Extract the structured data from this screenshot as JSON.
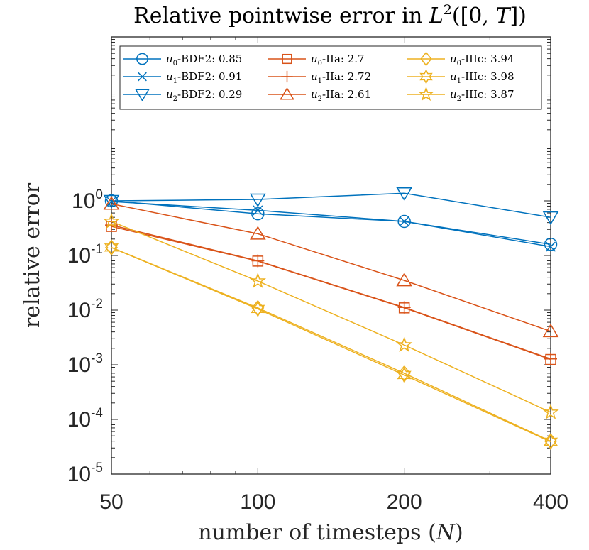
{
  "chart_data": {
    "type": "line",
    "title": "Relative pointwise error in L²([0, T])",
    "xlabel": "number of timesteps (N)",
    "ylabel": "relative error",
    "x_scale": "log",
    "y_scale": "log",
    "x": [
      50,
      100,
      200,
      400
    ],
    "xlim": [
      50,
      400
    ],
    "ylim": [
      1e-05,
      1000
    ],
    "x_ticks": [
      50,
      100,
      200,
      400
    ],
    "x_tick_labels": [
      "50",
      "100",
      "200",
      "400"
    ],
    "y_ticks": [
      1e-05,
      0.0001,
      0.001,
      0.01,
      0.1,
      1
    ],
    "y_tick_labels": [
      {
        "base": "10",
        "exp": "-5"
      },
      {
        "base": "10",
        "exp": "-4"
      },
      {
        "base": "10",
        "exp": "-3"
      },
      {
        "base": "10",
        "exp": "-2"
      },
      {
        "base": "10",
        "exp": "-1"
      },
      {
        "base": "10",
        "exp": "0"
      }
    ],
    "grid": false,
    "legend_position": "top",
    "series": [
      {
        "name": "u0-BDF2: 0.85",
        "label_sub": "0",
        "label_rest": "-BDF2:",
        "label_rate": "0.85",
        "marker": "circle",
        "color": "#0072BD",
        "line_width": 1.5,
        "values": [
          1.0,
          0.58,
          0.42,
          0.16
        ]
      },
      {
        "name": "u1-BDF2: 0.91",
        "label_sub": "1",
        "label_rest": "-BDF2:",
        "label_rate": "0.91",
        "marker": "x",
        "color": "#0072BD",
        "line_width": 1.5,
        "values": [
          0.97,
          0.67,
          0.42,
          0.145
        ]
      },
      {
        "name": "u2-BDF2: 0.29",
        "label_sub": "2",
        "label_rest": "-BDF2:",
        "label_rate": "0.29",
        "marker": "triangle-down",
        "color": "#0072BD",
        "line_width": 1.5,
        "values": [
          1.0,
          1.06,
          1.38,
          0.5
        ]
      },
      {
        "name": "u0-IIa: 2.7",
        "label_sub": "0",
        "label_rest": "-IIa:",
        "label_rate": "2.7",
        "marker": "square",
        "color": "#D95319",
        "line_width": 1.5,
        "values": [
          0.34,
          0.079,
          0.011,
          0.00125
        ]
      },
      {
        "name": "u1-IIa: 2.72",
        "label_sub": "1",
        "label_rest": "-IIa:",
        "label_rate": "2.72",
        "marker": "plus",
        "color": "#D95319",
        "line_width": 1.5,
        "values": [
          0.36,
          0.08,
          0.0112,
          0.00128
        ]
      },
      {
        "name": "u2-IIa: 2.61",
        "label_sub": "2",
        "label_rest": "-IIa:",
        "label_rate": "2.61",
        "marker": "triangle-up",
        "color": "#D95319",
        "line_width": 1.5,
        "values": [
          0.88,
          0.25,
          0.035,
          0.0041
        ]
      },
      {
        "name": "u0-IIIc: 3.94",
        "label_sub": "0",
        "label_rest": "-IIIc:",
        "label_rate": "3.94",
        "marker": "diamond",
        "color": "#EDB120",
        "line_width": 1.5,
        "values": [
          0.14,
          0.011,
          0.0007,
          4e-05
        ]
      },
      {
        "name": "u1-IIIc: 3.98",
        "label_sub": "1",
        "label_rest": "-IIIc:",
        "label_rate": "3.98",
        "marker": "hexagram",
        "color": "#EDB120",
        "line_width": 1.5,
        "values": [
          0.14,
          0.0105,
          0.00065,
          3.9e-05
        ]
      },
      {
        "name": "u2-IIIc: 3.87",
        "label_sub": "2",
        "label_rest": "-IIIc:",
        "label_rate": "3.87",
        "marker": "pentagram",
        "color": "#EDB120",
        "line_width": 1.5,
        "values": [
          0.42,
          0.034,
          0.0023,
          0.000135
        ]
      }
    ]
  }
}
